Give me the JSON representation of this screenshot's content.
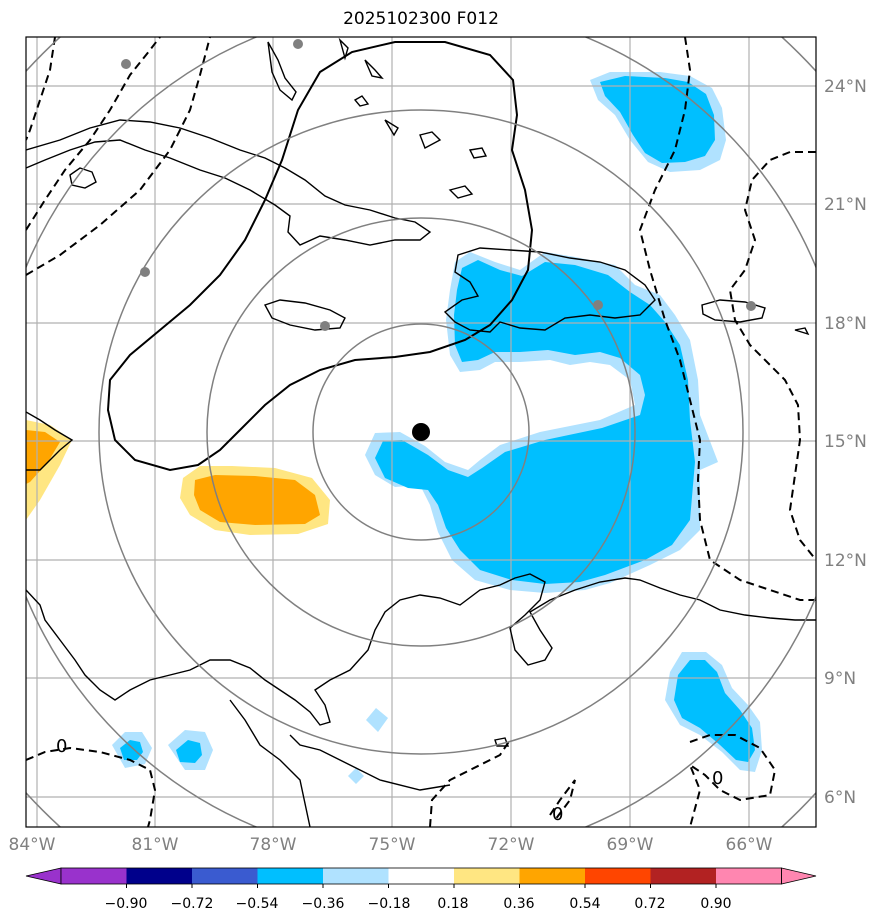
{
  "title": "2025102300 F012",
  "map": {
    "lon_labels": [
      "84°W",
      "81°W",
      "78°W",
      "75°W",
      "72°W",
      "69°W",
      "66°W"
    ],
    "lat_labels": [
      "24°N",
      "21°N",
      "18°N",
      "15°N",
      "12°N",
      "9°N",
      "6°N"
    ],
    "contour_labels": [
      "0",
      "0",
      "0"
    ],
    "center_marker": "storm-center",
    "colors": {
      "blue_strong": "#00bfff",
      "blue_light": "#b0e2ff",
      "orange": "#ffa500",
      "yellow": "#ffe682",
      "range_ring": "#808080",
      "grid": "#b0b0b0"
    }
  },
  "colorbar": {
    "ticks": [
      "−0.90",
      "−0.72",
      "−0.54",
      "−0.36",
      "−0.18",
      "0.18",
      "0.36",
      "0.54",
      "0.72",
      "0.90"
    ],
    "colors": [
      "#9932cc",
      "#00008b",
      "#3a5bd0",
      "#00bfff",
      "#b0e2ff",
      "#ffffff",
      "#ffe682",
      "#ffa500",
      "#ff4500",
      "#b22222",
      "#ff86b0",
      "#ff86b0"
    ]
  }
}
